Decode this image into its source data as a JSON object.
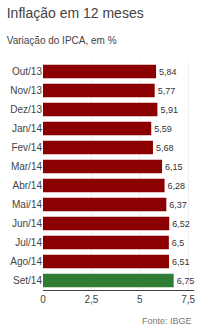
{
  "chart_data": {
    "type": "bar",
    "orientation": "horizontal",
    "title": "Inflação em 12 meses",
    "subtitle": "Variação do IPCA, em %",
    "annotations": [
      "Fonte: IBGE"
    ],
    "categories": [
      "Out/13",
      "Nov/13",
      "Dez/13",
      "Jan/14",
      "Fev/14",
      "Mar/14",
      "Abr/14",
      "Mai/14",
      "Jun/14",
      "Jul/14",
      "Ago/14",
      "Set/14"
    ],
    "values": [
      5.84,
      5.77,
      5.91,
      5.59,
      5.68,
      6.15,
      6.28,
      6.37,
      6.52,
      6.5,
      6.51,
      6.75
    ],
    "value_labels": [
      "5,84",
      "5,77",
      "5,91",
      "5,59",
      "5,68",
      "6,15",
      "6,28",
      "6,37",
      "6,52",
      "6,5",
      "6,51",
      "6,75"
    ],
    "data_labels": true,
    "colors": [
      "#8b0000",
      "#8b0000",
      "#8b0000",
      "#8b0000",
      "#8b0000",
      "#8b0000",
      "#8b0000",
      "#8b0000",
      "#8b0000",
      "#8b0000",
      "#8b0000",
      "#2e7d32"
    ],
    "xlim": [
      0,
      7.8
    ],
    "xticks": [
      0,
      {
        "value": 2.5,
        "label": "2,5"
      },
      5,
      {
        "value": 7.5,
        "label": "7,5"
      }
    ],
    "grid": true
  }
}
